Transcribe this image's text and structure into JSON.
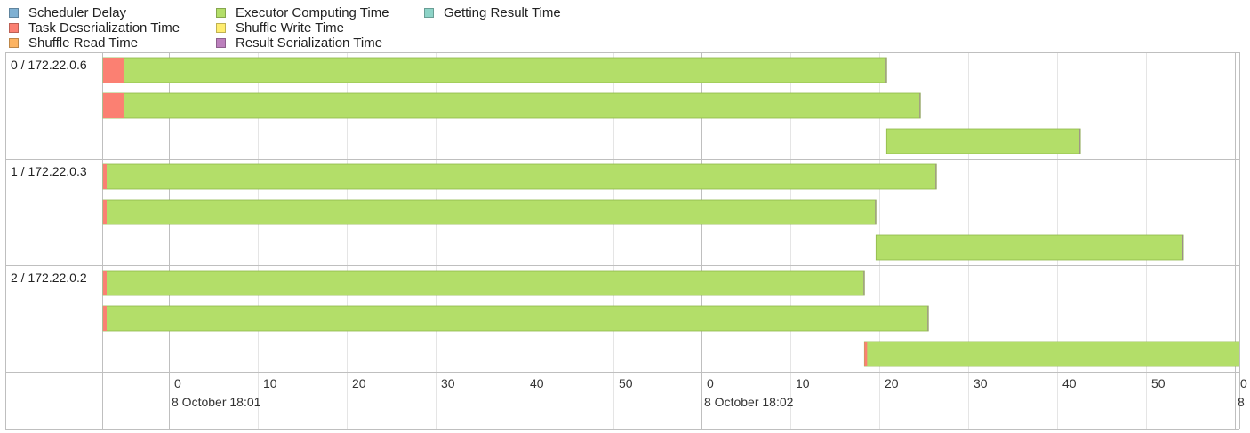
{
  "legend": [
    {
      "label": "Scheduler Delay",
      "color": "#80B1D3"
    },
    {
      "label": "Task Deserialization Time",
      "color": "#FB8072"
    },
    {
      "label": "Shuffle Read Time",
      "color": "#FDB462"
    },
    {
      "label": "Executor Computing Time",
      "color": "#B3DE69"
    },
    {
      "label": "Shuffle Write Time",
      "color": "#FFED6F"
    },
    {
      "label": "Result Serialization Time",
      "color": "#BC80BD"
    },
    {
      "label": "Getting Result Time",
      "color": "#8DD3C7"
    }
  ],
  "chart_data": {
    "type": "timeline",
    "time_unit": "seconds since 8 October 18:01:00",
    "x_range": [
      -7.5,
      120.5
    ],
    "x_ticks": [
      {
        "t": 0,
        "label": "0"
      },
      {
        "t": 10,
        "label": "10"
      },
      {
        "t": 20,
        "label": "20"
      },
      {
        "t": 30,
        "label": "30"
      },
      {
        "t": 40,
        "label": "40"
      },
      {
        "t": 50,
        "label": "50"
      },
      {
        "t": 60,
        "label": "0"
      },
      {
        "t": 70,
        "label": "10"
      },
      {
        "t": 80,
        "label": "20"
      },
      {
        "t": 90,
        "label": "30"
      },
      {
        "t": 100,
        "label": "40"
      },
      {
        "t": 110,
        "label": "50"
      },
      {
        "t": 120,
        "label": "0"
      }
    ],
    "major_ticks": [
      {
        "t": 0,
        "label": "8 October 18:01"
      },
      {
        "t": 60,
        "label": "8 October 18:02"
      },
      {
        "t": 120,
        "label": "8"
      }
    ],
    "groups": [
      {
        "label": "0 / 172.22.0.6",
        "tasks": [
          {
            "start": -7.4,
            "deser": 2.3,
            "end": 80.8
          },
          {
            "start": -7.4,
            "deser": 2.3,
            "end": 84.6
          },
          {
            "start": 80.8,
            "deser": 0,
            "end": 102.6
          }
        ]
      },
      {
        "label": "1 / 172.22.0.3",
        "tasks": [
          {
            "start": -7.4,
            "deser": 0.4,
            "end": 86.4
          },
          {
            "start": -7.4,
            "deser": 0.4,
            "end": 79.6
          },
          {
            "start": 79.6,
            "deser": 0,
            "end": 114.2
          }
        ]
      },
      {
        "label": "2 / 172.22.0.2",
        "tasks": [
          {
            "start": -7.4,
            "deser": 0.4,
            "end": 78.3
          },
          {
            "start": -7.4,
            "deser": 0.4,
            "end": 85.5
          },
          {
            "start": 78.3,
            "deser": 0.3,
            "end": 128.0
          }
        ]
      }
    ]
  }
}
